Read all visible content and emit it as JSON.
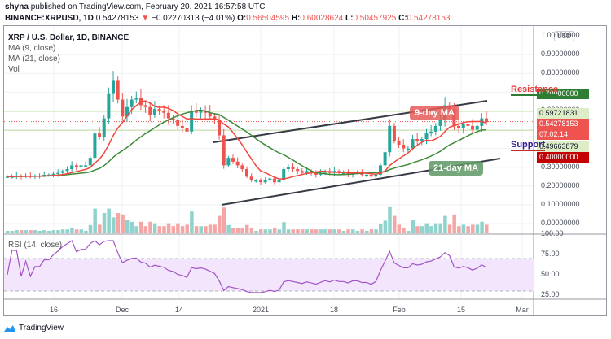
{
  "header": {
    "author": "shyna",
    "published_text": "published on TradingView.com, February 20, 2021 16:57:58 UTC",
    "symbol": "BINANCE:XRPUSD, 1D",
    "last": "0.54278153",
    "change": "−0.02270313 (−4.01%)",
    "o_label": "O:",
    "o": "0.56504595",
    "h_label": "H:",
    "h": "0.60028624",
    "l_label": "L:",
    "l": "0.50457925",
    "c_label": "C:",
    "c": "0.54278153"
  },
  "legend": {
    "title": "XRP / U.S. Dollar, 1D, BINANCE",
    "ma9": "MA (9, close)",
    "ma21": "MA (21, close)",
    "vol": "Vol",
    "rsi": "RSI (14, close)"
  },
  "price_axis": {
    "currency": "USD",
    "ticks": [
      "1.00000000",
      "0.90000000",
      "0.80000000",
      "0.60000000",
      "0.50000000",
      "0.30000000",
      "0.20000000",
      "0.10000000",
      "0.00000000"
    ],
    "resistance_tag": "0.70000000",
    "high_tag": "0.59721831",
    "last_tag": "0.54278153",
    "countdown": "07:02:14",
    "low_tag": "0.49663879",
    "support_tag": "0.40000000"
  },
  "rsi_axis": {
    "ticks": [
      "100.00",
      "75.00",
      "50.00",
      "25.00"
    ]
  },
  "annotations": {
    "resistance": "Resistance",
    "support": "Support",
    "ma9_bubble": "9-day MA",
    "ma21_bubble": "21-day MA"
  },
  "time_axis": [
    "16",
    "Dec",
    "14",
    "2021",
    "18",
    "Feb",
    "15",
    "Mar"
  ],
  "footer": {
    "brand": "TradingView"
  },
  "colors": {
    "up": "#26a69a",
    "down": "#ef5350",
    "ma9": "#f0463c",
    "ma21": "#3d8b37",
    "rsi": "#a354c6",
    "resistance": "#2e7d32",
    "support": "#c62828"
  },
  "chart_data": {
    "type": "candlestick",
    "title": "XRP / U.S. Dollar, 1D, BINANCE",
    "indicators": [
      "MA (9, close)",
      "MA (21, close)",
      "Vol",
      "RSI (14, close)"
    ],
    "ylim": [
      0.0,
      1.05
    ],
    "x_ticks": [
      "16",
      "Dec",
      "14",
      "2021",
      "18",
      "Feb",
      "15",
      "Mar"
    ],
    "levels": {
      "resistance": 0.7,
      "support": 0.4,
      "last": 0.54278153,
      "recent_high": 0.59721831,
      "recent_low": 0.49663879
    },
    "ohlc_close_approx": [
      0.25,
      0.25,
      0.255,
      0.25,
      0.255,
      0.25,
      0.255,
      0.255,
      0.26,
      0.26,
      0.265,
      0.27,
      0.28,
      0.29,
      0.31,
      0.3,
      0.31,
      0.31,
      0.35,
      0.48,
      0.46,
      0.56,
      0.69,
      0.76,
      0.66,
      0.57,
      0.62,
      0.66,
      0.67,
      0.63,
      0.62,
      0.58,
      0.61,
      0.6,
      0.59,
      0.56,
      0.55,
      0.52,
      0.51,
      0.49,
      0.6,
      0.59,
      0.6,
      0.59,
      0.57,
      0.55,
      0.47,
      0.31,
      0.35,
      0.33,
      0.31,
      0.29,
      0.25,
      0.23,
      0.23,
      0.22,
      0.23,
      0.24,
      0.22,
      0.23,
      0.29,
      0.3,
      0.29,
      0.28,
      0.27,
      0.28,
      0.27,
      0.26,
      0.27,
      0.28,
      0.27,
      0.28,
      0.27,
      0.27,
      0.26,
      0.27,
      0.27,
      0.26,
      0.26,
      0.25,
      0.26,
      0.31,
      0.38,
      0.52,
      0.44,
      0.42,
      0.4,
      0.4,
      0.45,
      0.44,
      0.45,
      0.48,
      0.49,
      0.52,
      0.55,
      0.63,
      0.61,
      0.52,
      0.51,
      0.53,
      0.52,
      0.5,
      0.52,
      0.56,
      0.54
    ],
    "rsi_range": [
      25,
      100
    ],
    "rsi_band": [
      30,
      70
    ]
  }
}
